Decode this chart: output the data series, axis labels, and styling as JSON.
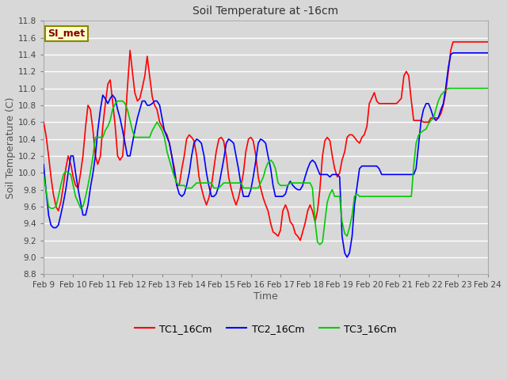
{
  "title": "Soil Temperature at -16cm",
  "xlabel": "Time",
  "ylabel": "Soil Temperature (C)",
  "ylim": [
    8.8,
    11.8
  ],
  "xlim": [
    0,
    15
  ],
  "bg_color": "#d8d8d8",
  "plot_bg": "#d8d8d8",
  "grid_color": "#ffffff",
  "series_names": [
    "TC1_16Cm",
    "TC2_16Cm",
    "TC3_16Cm"
  ],
  "series_colors": [
    "#ff0000",
    "#0000ff",
    "#00cc00"
  ],
  "xtick_labels": [
    "Feb 9",
    "Feb 10",
    "Feb 11",
    "Feb 12",
    "Feb 13",
    "Feb 14",
    "Feb 15",
    "Feb 16",
    "Feb 17",
    "Feb 18",
    "Feb 19",
    "Feb 20",
    "Feb 21",
    "Feb 22",
    "Feb 23",
    "Feb 24"
  ],
  "ytick_values": [
    8.8,
    9.0,
    9.2,
    9.4,
    9.6,
    9.8,
    10.0,
    10.2,
    10.4,
    10.6,
    10.8,
    11.0,
    11.2,
    11.4,
    11.6,
    11.8
  ],
  "legend_label": "SI_met",
  "legend_box_facecolor": "#ffffcc",
  "legend_box_edgecolor": "#888800",
  "TC1_x": [
    0.0,
    0.08,
    0.17,
    0.25,
    0.33,
    0.42,
    0.5,
    0.58,
    0.67,
    0.75,
    0.83,
    0.92,
    1.0,
    1.08,
    1.17,
    1.25,
    1.33,
    1.42,
    1.5,
    1.58,
    1.67,
    1.75,
    1.83,
    1.92,
    2.0,
    2.08,
    2.17,
    2.25,
    2.33,
    2.42,
    2.5,
    2.58,
    2.67,
    2.75,
    2.83,
    2.92,
    3.0,
    3.08,
    3.17,
    3.25,
    3.33,
    3.42,
    3.5,
    3.58,
    3.67,
    3.75,
    3.83,
    3.92,
    4.0,
    4.08,
    4.17,
    4.25,
    4.33,
    4.42,
    4.5,
    4.58,
    4.67,
    4.75,
    4.83,
    4.92,
    5.0,
    5.08,
    5.17,
    5.25,
    5.33,
    5.42,
    5.5,
    5.58,
    5.67,
    5.75,
    5.83,
    5.92,
    6.0,
    6.08,
    6.17,
    6.25,
    6.33,
    6.42,
    6.5,
    6.58,
    6.67,
    6.75,
    6.83,
    6.92,
    7.0,
    7.08,
    7.17,
    7.25,
    7.33,
    7.42,
    7.5,
    7.58,
    7.67,
    7.75,
    7.83,
    7.92,
    8.0,
    8.08,
    8.17,
    8.25,
    8.33,
    8.42,
    8.5,
    8.58,
    8.67,
    8.75,
    8.83,
    8.92,
    9.0,
    9.08,
    9.17,
    9.25,
    9.33,
    9.42,
    9.5,
    9.58,
    9.67,
    9.75,
    9.83,
    9.92,
    10.0,
    10.08,
    10.17,
    10.25,
    10.33,
    10.42,
    10.5,
    10.58,
    10.67,
    10.75,
    10.83,
    10.92,
    11.0,
    11.08,
    11.17,
    11.25,
    11.33,
    11.42,
    11.5,
    11.58,
    11.67,
    11.75,
    11.83,
    11.92,
    12.0,
    12.08,
    12.17,
    12.25,
    12.33,
    12.42,
    12.5,
    12.58,
    12.67,
    12.75,
    12.83,
    12.92,
    13.0,
    13.08,
    13.17,
    13.25,
    13.33,
    13.42,
    13.5,
    13.58,
    13.67,
    13.75,
    13.83,
    13.92,
    14.0,
    14.08,
    14.17,
    14.25,
    14.33,
    14.42,
    14.5,
    14.58,
    14.67,
    14.75,
    14.83,
    14.92,
    15.0
  ],
  "TC1_y": [
    10.6,
    10.45,
    10.2,
    9.95,
    9.75,
    9.6,
    9.55,
    9.65,
    9.85,
    10.05,
    10.2,
    10.1,
    9.95,
    9.85,
    9.82,
    10.0,
    10.2,
    10.55,
    10.8,
    10.75,
    10.5,
    10.2,
    10.1,
    10.2,
    10.55,
    10.8,
    11.05,
    11.1,
    10.85,
    10.55,
    10.2,
    10.15,
    10.2,
    10.55,
    11.0,
    11.45,
    11.2,
    10.95,
    10.85,
    10.88,
    11.0,
    11.15,
    11.38,
    11.15,
    10.9,
    10.8,
    10.75,
    10.6,
    10.55,
    10.5,
    10.45,
    10.35,
    10.2,
    10.05,
    9.85,
    9.85,
    10.05,
    10.2,
    10.4,
    10.45,
    10.42,
    10.38,
    10.2,
    9.95,
    9.82,
    9.7,
    9.62,
    9.7,
    9.85,
    10.05,
    10.25,
    10.4,
    10.42,
    10.38,
    10.2,
    9.95,
    9.82,
    9.7,
    9.62,
    9.7,
    9.85,
    10.0,
    10.25,
    10.4,
    10.42,
    10.38,
    10.2,
    9.95,
    9.82,
    9.7,
    9.62,
    9.55,
    9.4,
    9.3,
    9.28,
    9.25,
    9.32,
    9.55,
    9.62,
    9.55,
    9.42,
    9.38,
    9.28,
    9.25,
    9.2,
    9.3,
    9.4,
    9.55,
    9.62,
    9.55,
    9.42,
    9.55,
    9.8,
    10.2,
    10.38,
    10.42,
    10.38,
    10.2,
    10.05,
    9.95,
    10.0,
    10.15,
    10.25,
    10.42,
    10.45,
    10.45,
    10.42,
    10.38,
    10.35,
    10.42,
    10.45,
    10.55,
    10.82,
    10.88,
    10.95,
    10.85,
    10.82,
    10.82,
    10.82,
    10.82,
    10.82,
    10.82,
    10.82,
    10.82,
    10.85,
    10.88,
    11.15,
    11.2,
    11.15,
    10.85,
    10.62,
    10.62,
    10.62,
    10.62,
    10.6,
    10.6,
    10.6,
    10.65,
    10.65,
    10.65,
    10.65,
    10.7,
    10.8,
    10.95,
    11.2,
    11.45,
    11.55,
    11.55,
    11.55,
    11.55,
    11.55,
    11.55,
    11.55,
    11.55,
    11.55,
    11.55,
    11.55,
    11.55,
    11.55,
    11.55,
    11.55
  ],
  "TC2_y": [
    10.1,
    9.8,
    9.5,
    9.38,
    9.35,
    9.35,
    9.38,
    9.5,
    9.65,
    9.8,
    10.0,
    10.2,
    10.2,
    10.0,
    9.8,
    9.65,
    9.5,
    9.5,
    9.62,
    9.82,
    10.0,
    10.2,
    10.5,
    10.75,
    10.92,
    10.88,
    10.82,
    10.88,
    10.92,
    10.88,
    10.75,
    10.65,
    10.5,
    10.35,
    10.2,
    10.2,
    10.35,
    10.5,
    10.65,
    10.75,
    10.85,
    10.85,
    10.8,
    10.8,
    10.82,
    10.85,
    10.85,
    10.8,
    10.65,
    10.5,
    10.42,
    10.35,
    10.2,
    10.0,
    9.85,
    9.75,
    9.72,
    9.75,
    9.85,
    10.0,
    10.2,
    10.35,
    10.4,
    10.38,
    10.35,
    10.2,
    10.0,
    9.85,
    9.72,
    9.72,
    9.75,
    9.85,
    10.0,
    10.15,
    10.35,
    10.4,
    10.38,
    10.35,
    10.2,
    10.05,
    9.85,
    9.72,
    9.72,
    9.72,
    9.8,
    9.95,
    10.15,
    10.35,
    10.4,
    10.38,
    10.35,
    10.2,
    10.05,
    9.85,
    9.72,
    9.72,
    9.72,
    9.72,
    9.75,
    9.85,
    9.9,
    9.85,
    9.82,
    9.8,
    9.8,
    9.85,
    9.95,
    10.05,
    10.12,
    10.15,
    10.12,
    10.05,
    9.98,
    9.98,
    9.98,
    9.98,
    9.95,
    9.98,
    9.98,
    9.98,
    9.95,
    9.25,
    9.05,
    9.0,
    9.05,
    9.25,
    9.62,
    9.82,
    10.05,
    10.08,
    10.08,
    10.08,
    10.08,
    10.08,
    10.08,
    10.08,
    10.05,
    9.98,
    9.98,
    9.98,
    9.98,
    9.98,
    9.98,
    9.98,
    9.98,
    9.98,
    9.98,
    9.98,
    9.98,
    9.98,
    9.98,
    10.05,
    10.35,
    10.62,
    10.75,
    10.82,
    10.82,
    10.75,
    10.65,
    10.62,
    10.65,
    10.75,
    10.82,
    11.0,
    11.25,
    11.4,
    11.42,
    11.42,
    11.42,
    11.42,
    11.42,
    11.42,
    11.42,
    11.42,
    11.42,
    11.42,
    11.42,
    11.42,
    11.42,
    11.42,
    11.42
  ],
  "TC3_y": [
    9.98,
    9.8,
    9.6,
    9.58,
    9.58,
    9.6,
    9.72,
    9.85,
    9.98,
    10.02,
    10.0,
    9.98,
    9.85,
    9.72,
    9.65,
    9.58,
    9.6,
    9.72,
    9.85,
    10.0,
    10.2,
    10.42,
    10.42,
    10.42,
    10.42,
    10.5,
    10.55,
    10.62,
    10.75,
    10.82,
    10.85,
    10.85,
    10.85,
    10.82,
    10.75,
    10.62,
    10.5,
    10.42,
    10.42,
    10.42,
    10.42,
    10.42,
    10.42,
    10.42,
    10.5,
    10.55,
    10.6,
    10.55,
    10.5,
    10.42,
    10.25,
    10.15,
    10.05,
    9.95,
    9.88,
    9.85,
    9.85,
    9.85,
    9.82,
    9.82,
    9.82,
    9.85,
    9.88,
    9.88,
    9.88,
    9.88,
    9.88,
    9.88,
    9.88,
    9.82,
    9.82,
    9.82,
    9.85,
    9.88,
    9.88,
    9.88,
    9.88,
    9.88,
    9.88,
    9.88,
    9.88,
    9.82,
    9.82,
    9.82,
    9.82,
    9.82,
    9.82,
    9.82,
    9.88,
    9.95,
    10.05,
    10.12,
    10.15,
    10.12,
    10.05,
    9.88,
    9.85,
    9.85,
    9.85,
    9.85,
    9.88,
    9.88,
    9.88,
    9.88,
    9.88,
    9.88,
    9.88,
    9.88,
    9.88,
    9.82,
    9.42,
    9.18,
    9.15,
    9.18,
    9.42,
    9.65,
    9.75,
    9.8,
    9.72,
    9.72,
    9.72,
    9.42,
    9.28,
    9.25,
    9.35,
    9.5,
    9.72,
    9.75,
    9.72,
    9.72,
    9.72,
    9.72,
    9.72,
    9.72,
    9.72,
    9.72,
    9.72,
    9.72,
    9.72,
    9.72,
    9.72,
    9.72,
    9.72,
    9.72,
    9.72,
    9.72,
    9.72,
    9.72,
    9.72,
    9.72,
    10.08,
    10.35,
    10.45,
    10.48,
    10.5,
    10.52,
    10.58,
    10.62,
    10.65,
    10.75,
    10.85,
    10.92,
    10.95,
    10.98,
    11.0,
    11.0,
    11.0,
    11.0,
    11.0,
    11.0,
    11.0,
    11.0,
    11.0,
    11.0,
    11.0,
    11.0,
    11.0,
    11.0,
    11.0,
    11.0,
    11.0
  ]
}
